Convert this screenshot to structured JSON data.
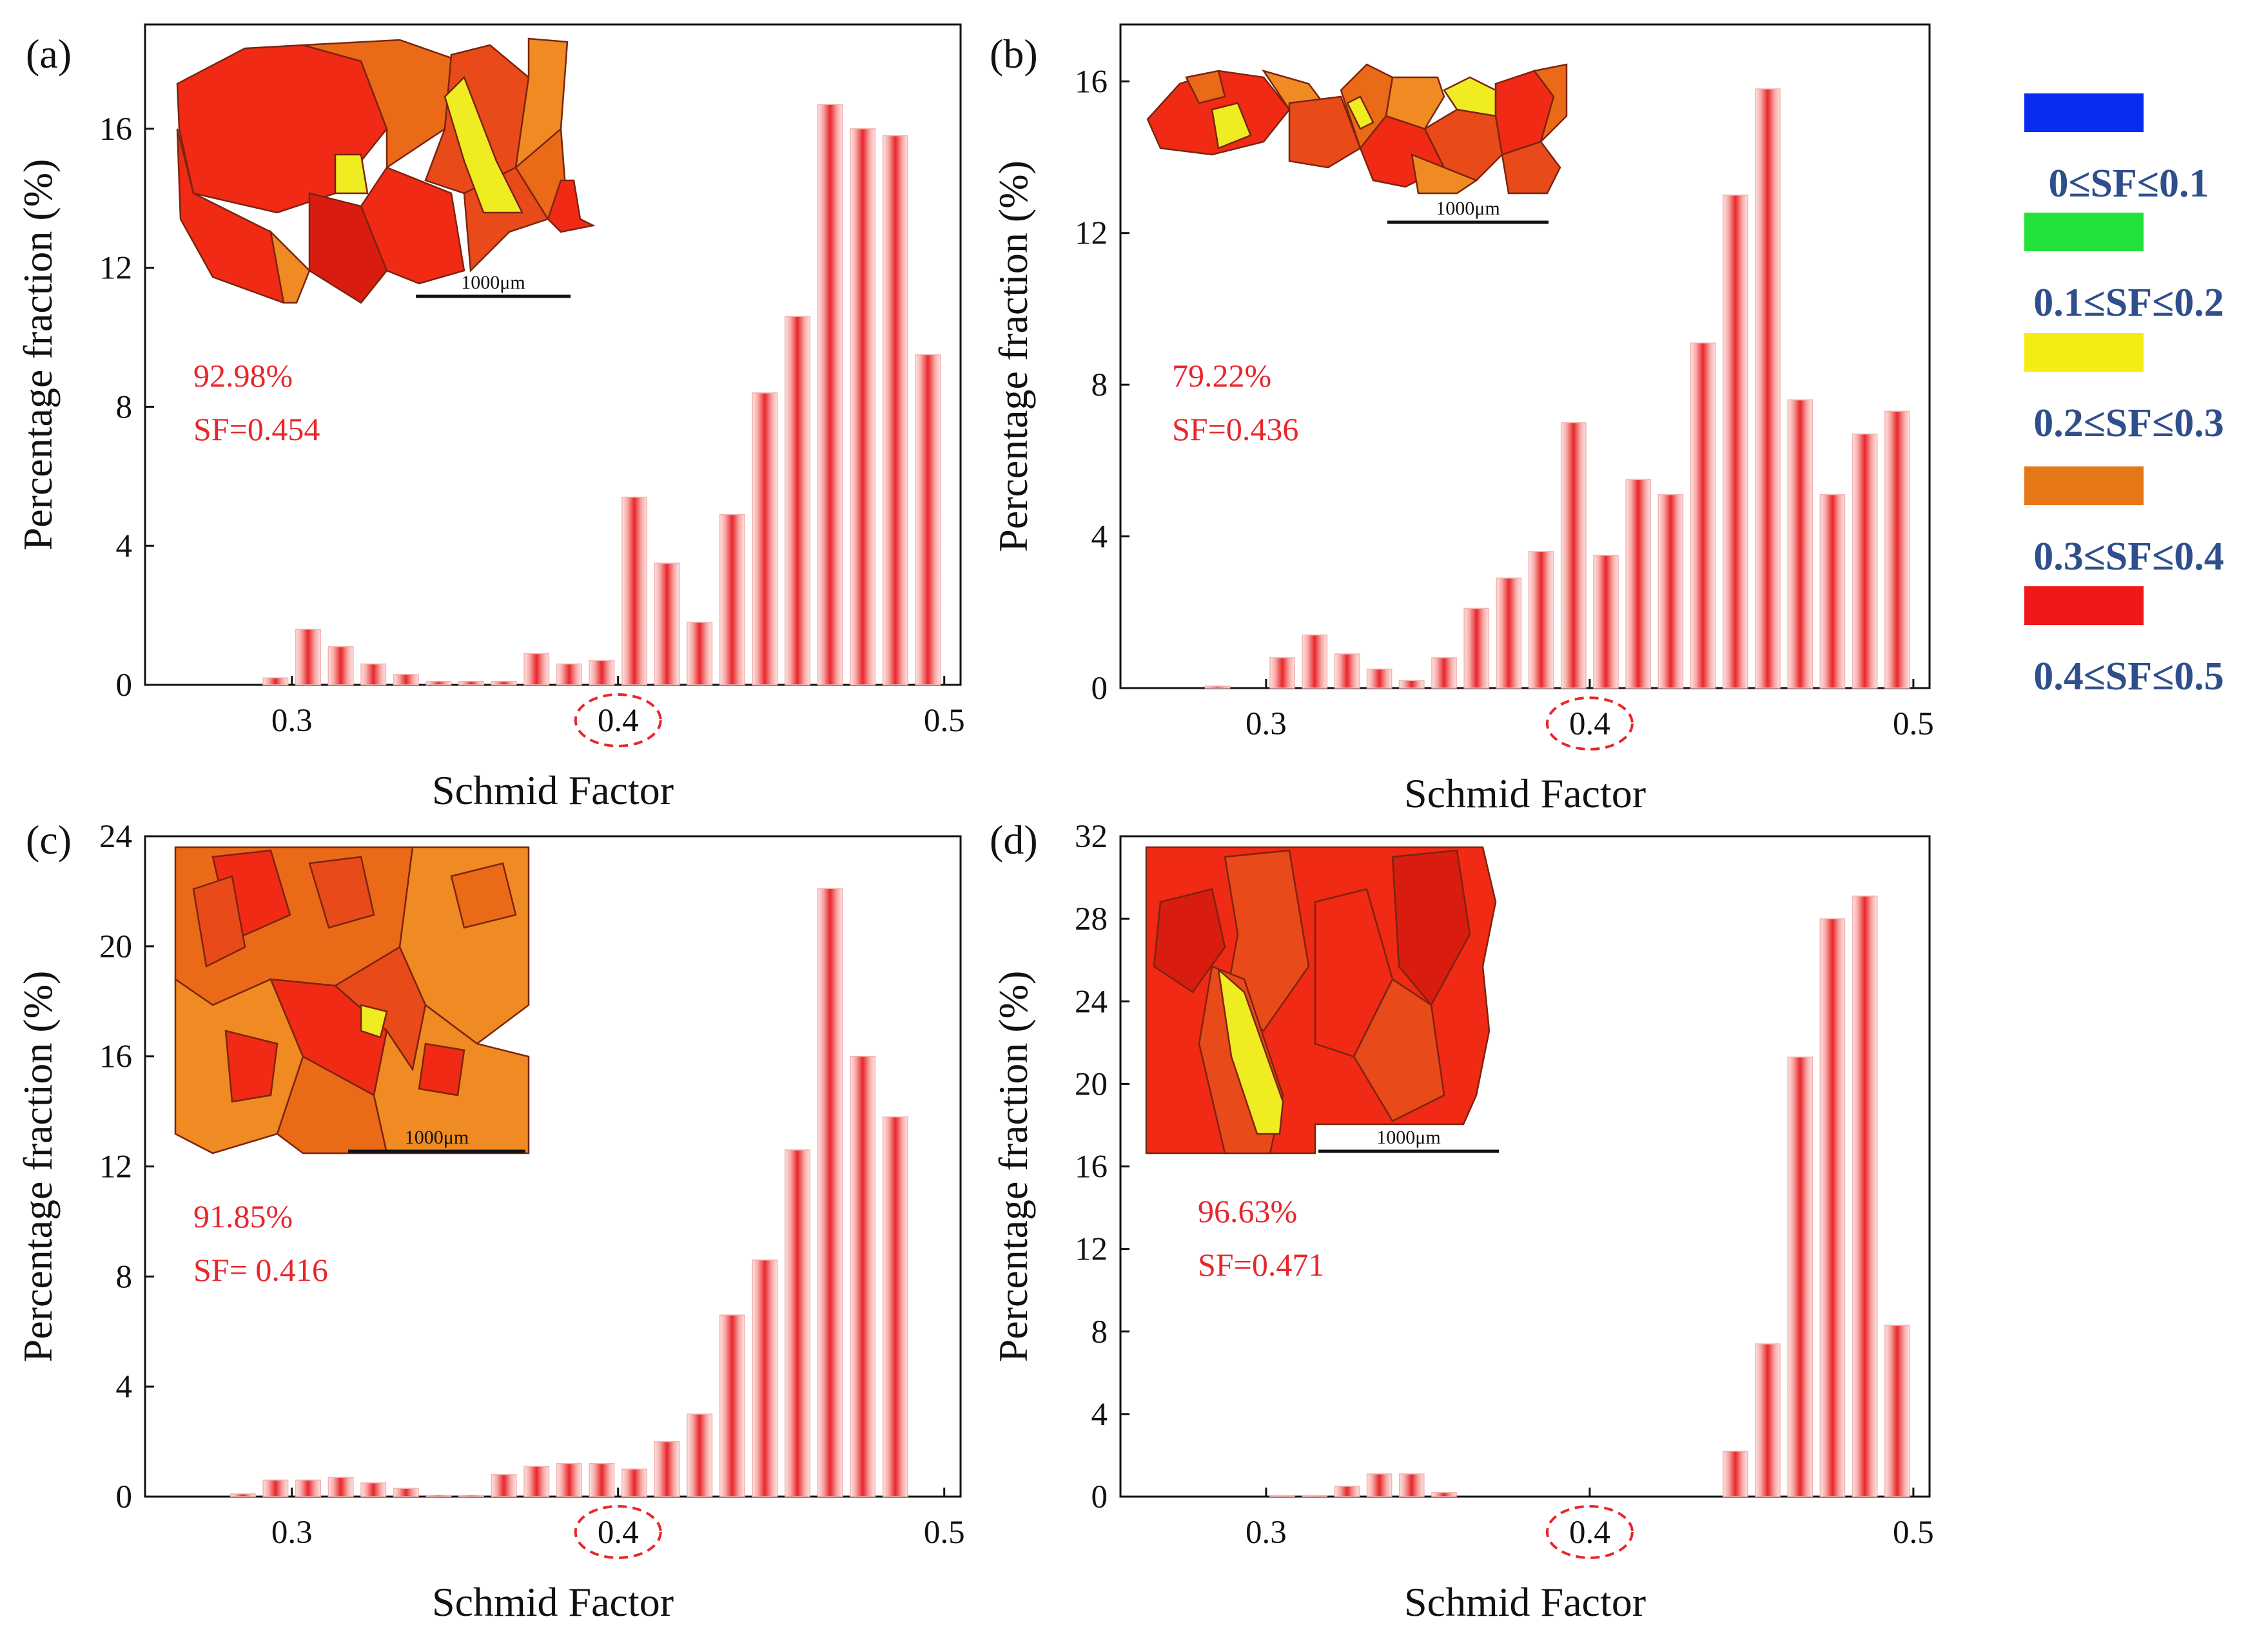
{
  "chart_data": [
    {
      "type": "bar",
      "panel_label": "(a)",
      "xlabel": "Schmid Factor",
      "ylabel": "Percentage fraction (%)",
      "xlim": [
        0.255,
        0.505
      ],
      "ylim": [
        0,
        19
      ],
      "xticks": [
        "0.3",
        "0.4",
        "0.5"
      ],
      "yticks": [
        "0",
        "4",
        "8",
        "12",
        "16"
      ],
      "highlighted_xtick": "0.4",
      "x": [
        0.295,
        0.305,
        0.315,
        0.325,
        0.335,
        0.345,
        0.355,
        0.365,
        0.375,
        0.385,
        0.395,
        0.405,
        0.415,
        0.425,
        0.435,
        0.445,
        0.455,
        0.465,
        0.475,
        0.485,
        0.495
      ],
      "values": [
        0.2,
        1.6,
        1.1,
        0.6,
        0.3,
        0.1,
        0.1,
        0.1,
        0.9,
        0.6,
        0.7,
        5.4,
        3.5,
        1.8,
        4.9,
        8.4,
        10.6,
        16.7,
        16.0,
        15.8,
        9.5
      ],
      "annotation": {
        "percent": "92.98%",
        "sf": "SF=0.454"
      },
      "inset_scale_bar": "1000μm"
    },
    {
      "type": "bar",
      "panel_label": "(b)",
      "xlabel": "Schmid Factor",
      "ylabel": "Percentage fraction (%)",
      "xlim": [
        0.255,
        0.505
      ],
      "ylim": [
        0,
        17.5
      ],
      "xticks": [
        "0.3",
        "0.4",
        "0.5"
      ],
      "yticks": [
        "0",
        "4",
        "8",
        "12",
        "16"
      ],
      "highlighted_xtick": "0.4",
      "x": [
        0.285,
        0.305,
        0.315,
        0.325,
        0.335,
        0.345,
        0.355,
        0.365,
        0.375,
        0.385,
        0.395,
        0.405,
        0.415,
        0.425,
        0.435,
        0.445,
        0.455,
        0.465,
        0.475,
        0.485,
        0.495
      ],
      "values": [
        0.05,
        0.8,
        1.4,
        0.9,
        0.5,
        0.2,
        0.8,
        2.1,
        2.9,
        3.6,
        7.0,
        3.5,
        5.5,
        5.1,
        9.1,
        13.0,
        15.8,
        7.6,
        5.1,
        6.7,
        7.3
      ],
      "annotation": {
        "percent": "79.22%",
        "sf": "SF=0.436"
      },
      "inset_scale_bar": "1000μm"
    },
    {
      "type": "bar",
      "panel_label": "(c)",
      "xlabel": "Schmid Factor",
      "ylabel": "Percentage fraction (%)",
      "xlim": [
        0.255,
        0.505
      ],
      "ylim": [
        0,
        24
      ],
      "xticks": [
        "0.3",
        "0.4",
        "0.5"
      ],
      "yticks": [
        "0",
        "4",
        "8",
        "12",
        "16",
        "20",
        "24"
      ],
      "highlighted_xtick": "0.4",
      "x": [
        0.285,
        0.295,
        0.305,
        0.315,
        0.325,
        0.335,
        0.345,
        0.355,
        0.365,
        0.375,
        0.385,
        0.395,
        0.405,
        0.415,
        0.425,
        0.435,
        0.445,
        0.455,
        0.465,
        0.475,
        0.485
      ],
      "values": [
        0.1,
        0.6,
        0.6,
        0.7,
        0.5,
        0.3,
        0.05,
        0.05,
        0.8,
        1.1,
        1.2,
        1.2,
        1.0,
        2.0,
        3.0,
        6.6,
        8.6,
        12.6,
        22.1,
        16.0,
        13.8
      ],
      "annotation": {
        "percent": "91.85%",
        "sf": "SF= 0.416"
      },
      "inset_scale_bar": "1000μm"
    },
    {
      "type": "bar",
      "panel_label": "(d)",
      "xlabel": "Schmid Factor",
      "ylabel": "Percentage fraction (%)",
      "xlim": [
        0.255,
        0.505
      ],
      "ylim": [
        0,
        32
      ],
      "xticks": [
        "0.3",
        "0.4",
        "0.5"
      ],
      "yticks": [
        "0",
        "4",
        "8",
        "12",
        "16",
        "20",
        "24",
        "28",
        "32"
      ],
      "highlighted_xtick": "0.4",
      "x": [
        0.305,
        0.315,
        0.325,
        0.335,
        0.345,
        0.355,
        0.445,
        0.455,
        0.465,
        0.475,
        0.485,
        0.495
      ],
      "values": [
        0.05,
        0.05,
        0.5,
        1.1,
        1.1,
        0.2,
        2.2,
        7.4,
        21.3,
        28.0,
        29.1,
        8.3
      ],
      "annotation": {
        "percent": "96.63%",
        "sf": "SF=0.471"
      },
      "inset_scale_bar": "1000μm"
    }
  ],
  "legend": [
    {
      "label": "0≤SF≤0.1",
      "color": "#0a2cf0"
    },
    {
      "label": "0.1≤SF≤0.2",
      "color": "#22e23a"
    },
    {
      "label": "0.2≤SF≤0.3",
      "color": "#f5ec14"
    },
    {
      "label": "0.3≤SF≤0.4",
      "color": "#e67716"
    },
    {
      "label": "0.4≤SF≤0.5",
      "color": "#f01818"
    }
  ],
  "colors": {
    "bar_main": "#e8262b",
    "bar_light": "#fde4e2",
    "annotation": "#e8262b",
    "legend_text": "#2f4f8c",
    "axis": "#111111"
  }
}
